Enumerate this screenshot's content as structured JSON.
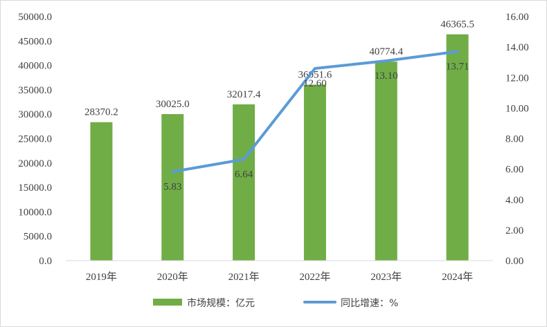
{
  "chart_data": {
    "type": "bar+line",
    "categories": [
      "2019年",
      "2020年",
      "2021年",
      "2022年",
      "2023年",
      "2024年"
    ],
    "series": [
      {
        "name": "市场规模：亿元",
        "type": "bar",
        "axis": "left",
        "values": [
          28370.2,
          30025.0,
          32017.4,
          36051.6,
          40774.4,
          46365.5
        ],
        "labels": [
          "28370.2",
          "30025.0",
          "32017.4",
          "36051.6",
          "40774.4",
          "46365.5"
        ],
        "color": "#70ad47"
      },
      {
        "name": "同比增速：%",
        "type": "line",
        "axis": "right",
        "values": [
          null,
          5.83,
          6.64,
          12.6,
          13.1,
          13.71
        ],
        "labels": [
          "",
          "5.83",
          "6.64",
          "12.60",
          "13.10",
          "13.71"
        ],
        "color": "#5b9bd5"
      }
    ],
    "y_left": {
      "ylim": [
        0,
        50000
      ],
      "ticks": [
        0,
        5000,
        10000,
        15000,
        20000,
        25000,
        30000,
        35000,
        40000,
        45000,
        50000
      ],
      "tick_labels": [
        "0.0",
        "5000.0",
        "10000.0",
        "15000.0",
        "20000.0",
        "25000.0",
        "30000.0",
        "35000.0",
        "40000.0",
        "45000.0",
        "50000.0"
      ]
    },
    "y_right": {
      "ylim": [
        0,
        16
      ],
      "ticks": [
        0,
        2,
        4,
        6,
        8,
        10,
        12,
        14,
        16
      ],
      "tick_labels": [
        "0.00",
        "2.00",
        "4.00",
        "6.00",
        "8.00",
        "10.00",
        "12.00",
        "14.00",
        "16.00"
      ]
    },
    "grid": false,
    "legend_position": "bottom"
  }
}
